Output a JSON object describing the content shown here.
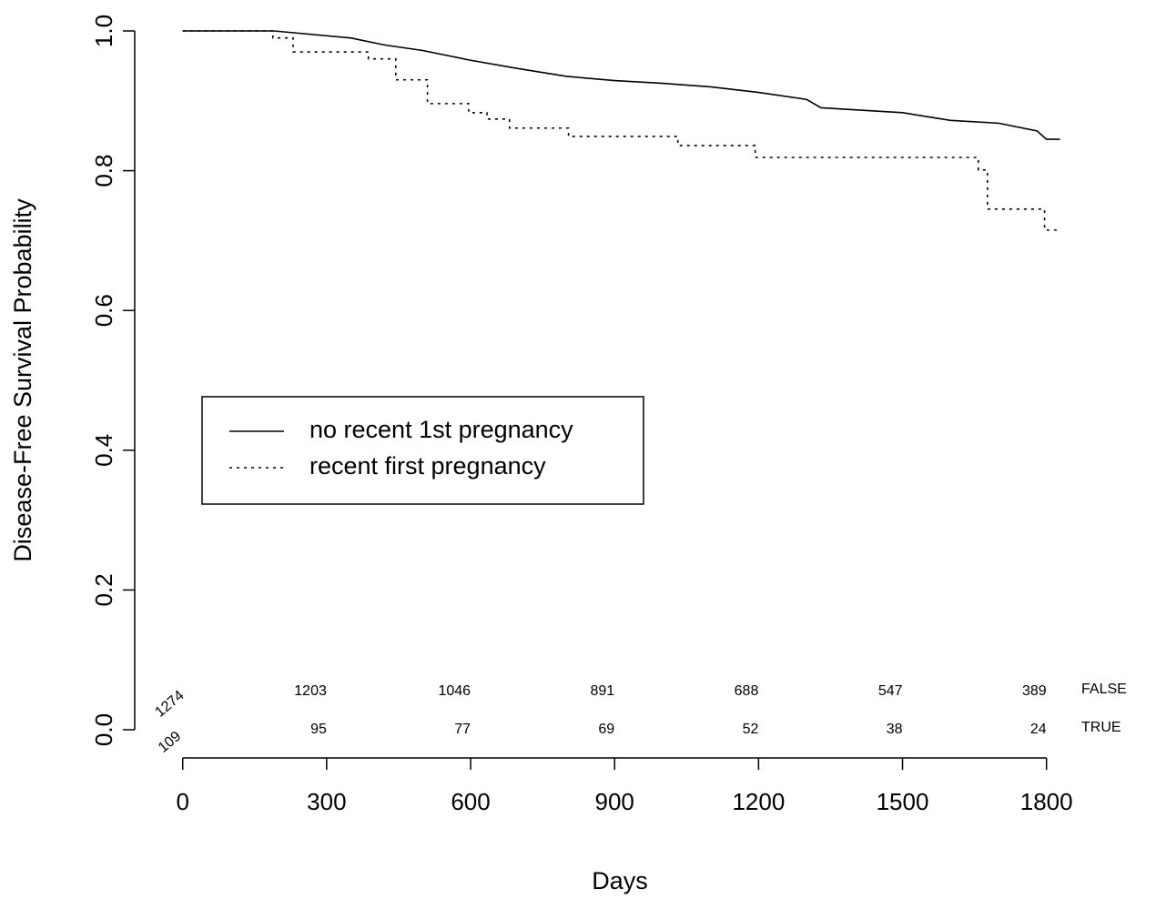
{
  "chart_data": {
    "type": "line",
    "xlabel": "Days",
    "ylabel": "Disease-Free Survival Probability",
    "xlim": [
      -100,
      1900
    ],
    "ylim": [
      0,
      1
    ],
    "xticks": [
      0,
      300,
      600,
      900,
      1200,
      1500,
      1800
    ],
    "yticks": [
      {
        "value": 0,
        "label": "0.0"
      },
      0.2,
      0.4,
      0.6,
      0.8,
      {
        "value": 1,
        "label": "1.0"
      }
    ],
    "legend": "center-left",
    "series": [
      {
        "name": "no recent 1st pregnancy",
        "color": "#000000",
        "dash": "solid",
        "step": false,
        "x": [
          0,
          190,
          350,
          420,
          500,
          600,
          700,
          800,
          900,
          1000,
          1100,
          1200,
          1300,
          1330,
          1500,
          1600,
          1700,
          1780,
          1800,
          1828
        ],
        "values": [
          1,
          1,
          0.99,
          0.98,
          0.972,
          0.958,
          0.946,
          0.935,
          0.929,
          0.925,
          0.92,
          0.912,
          0.902,
          0.89,
          0.883,
          0.872,
          0.868,
          0.857,
          0.845,
          0.845
        ]
      },
      {
        "name": "recent first pregnancy",
        "color": "#000000",
        "dash": "dotted",
        "step": true,
        "x": [
          0,
          188,
          230,
          387,
          444,
          510,
          596,
          634,
          681,
          804,
          1032,
          1193,
          1658,
          1677,
          1796,
          1828
        ],
        "values": [
          1,
          0.99,
          0.97,
          0.96,
          0.93,
          0.896,
          0.883,
          0.874,
          0.861,
          0.849,
          0.836,
          0.819,
          0.801,
          0.745,
          0.715,
          0.715
        ]
      }
    ],
    "risk_table": [
      {
        "label": "FALSE",
        "values": [
          1274,
          1203,
          1046,
          891,
          688,
          547,
          389
        ]
      },
      {
        "label": "TRUE",
        "values": [
          109,
          95,
          77,
          69,
          52,
          38,
          24
        ]
      }
    ]
  }
}
